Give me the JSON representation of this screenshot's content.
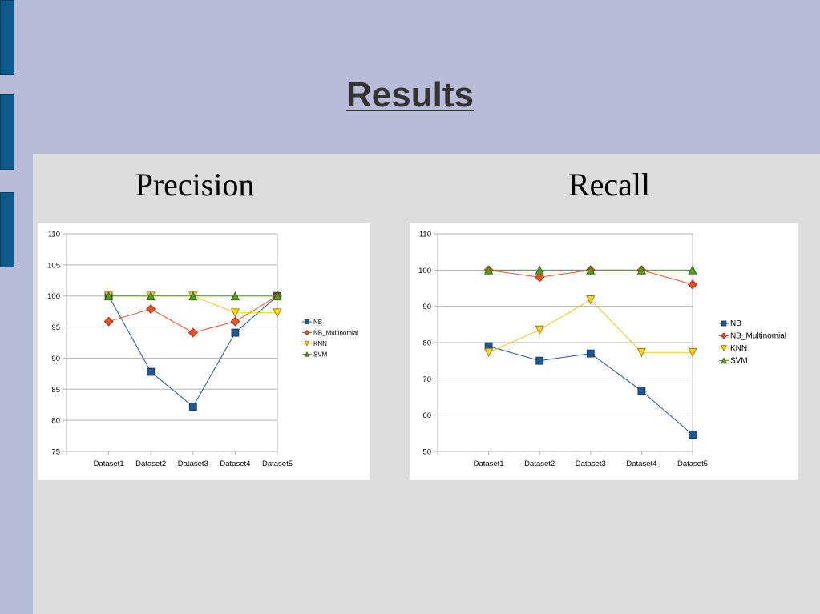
{
  "slide": {
    "title": "Results"
  },
  "headings": {
    "left": "Precision",
    "right": "Recall"
  },
  "chart_data": [
    {
      "type": "line",
      "categories": [
        "Dataset1",
        "Dataset2",
        "Dataset3",
        "Dataset4",
        "Dataset5"
      ],
      "ylim": [
        75,
        110
      ],
      "yticks": [
        75,
        80,
        85,
        90,
        95,
        100,
        105,
        110
      ],
      "grid": true,
      "legend": "right",
      "series": [
        {
          "name": "NB",
          "values": [
            100,
            87.8,
            82.2,
            94.1,
            100
          ],
          "color": "#1f5591",
          "marker": "square"
        },
        {
          "name": "NB_Multinomial",
          "values": [
            95.9,
            97.9,
            94.1,
            95.9,
            100
          ],
          "color": "#e8502a",
          "marker": "diamond"
        },
        {
          "name": "KNN",
          "values": [
            100,
            100,
            100,
            97.3,
            97.3
          ],
          "color": "#ffd320",
          "marker": "triangle-down"
        },
        {
          "name": "SVM",
          "values": [
            100,
            100,
            100,
            100,
            100
          ],
          "color": "#579d1c",
          "marker": "triangle-up"
        }
      ]
    },
    {
      "type": "line",
      "categories": [
        "Dataset1",
        "Dataset2",
        "Dataset3",
        "Dataset4",
        "Dataset5"
      ],
      "ylim": [
        50,
        110
      ],
      "yticks": [
        50,
        60,
        70,
        80,
        90,
        100,
        110
      ],
      "grid": true,
      "legend": "right",
      "series": [
        {
          "name": "NB",
          "values": [
            79,
            75,
            77,
            66.7,
            54.6
          ],
          "color": "#1f5591",
          "marker": "square"
        },
        {
          "name": "NB_Multinomial",
          "values": [
            100,
            98,
            100,
            100,
            96
          ],
          "color": "#e8502a",
          "marker": "diamond"
        },
        {
          "name": "KNN",
          "values": [
            77.3,
            83.5,
            91.8,
            77.3,
            77.3
          ],
          "color": "#ffd320",
          "marker": "triangle-down"
        },
        {
          "name": "SVM",
          "values": [
            100,
            100,
            100,
            100,
            100
          ],
          "color": "#579d1c",
          "marker": "triangle-up"
        }
      ]
    }
  ]
}
